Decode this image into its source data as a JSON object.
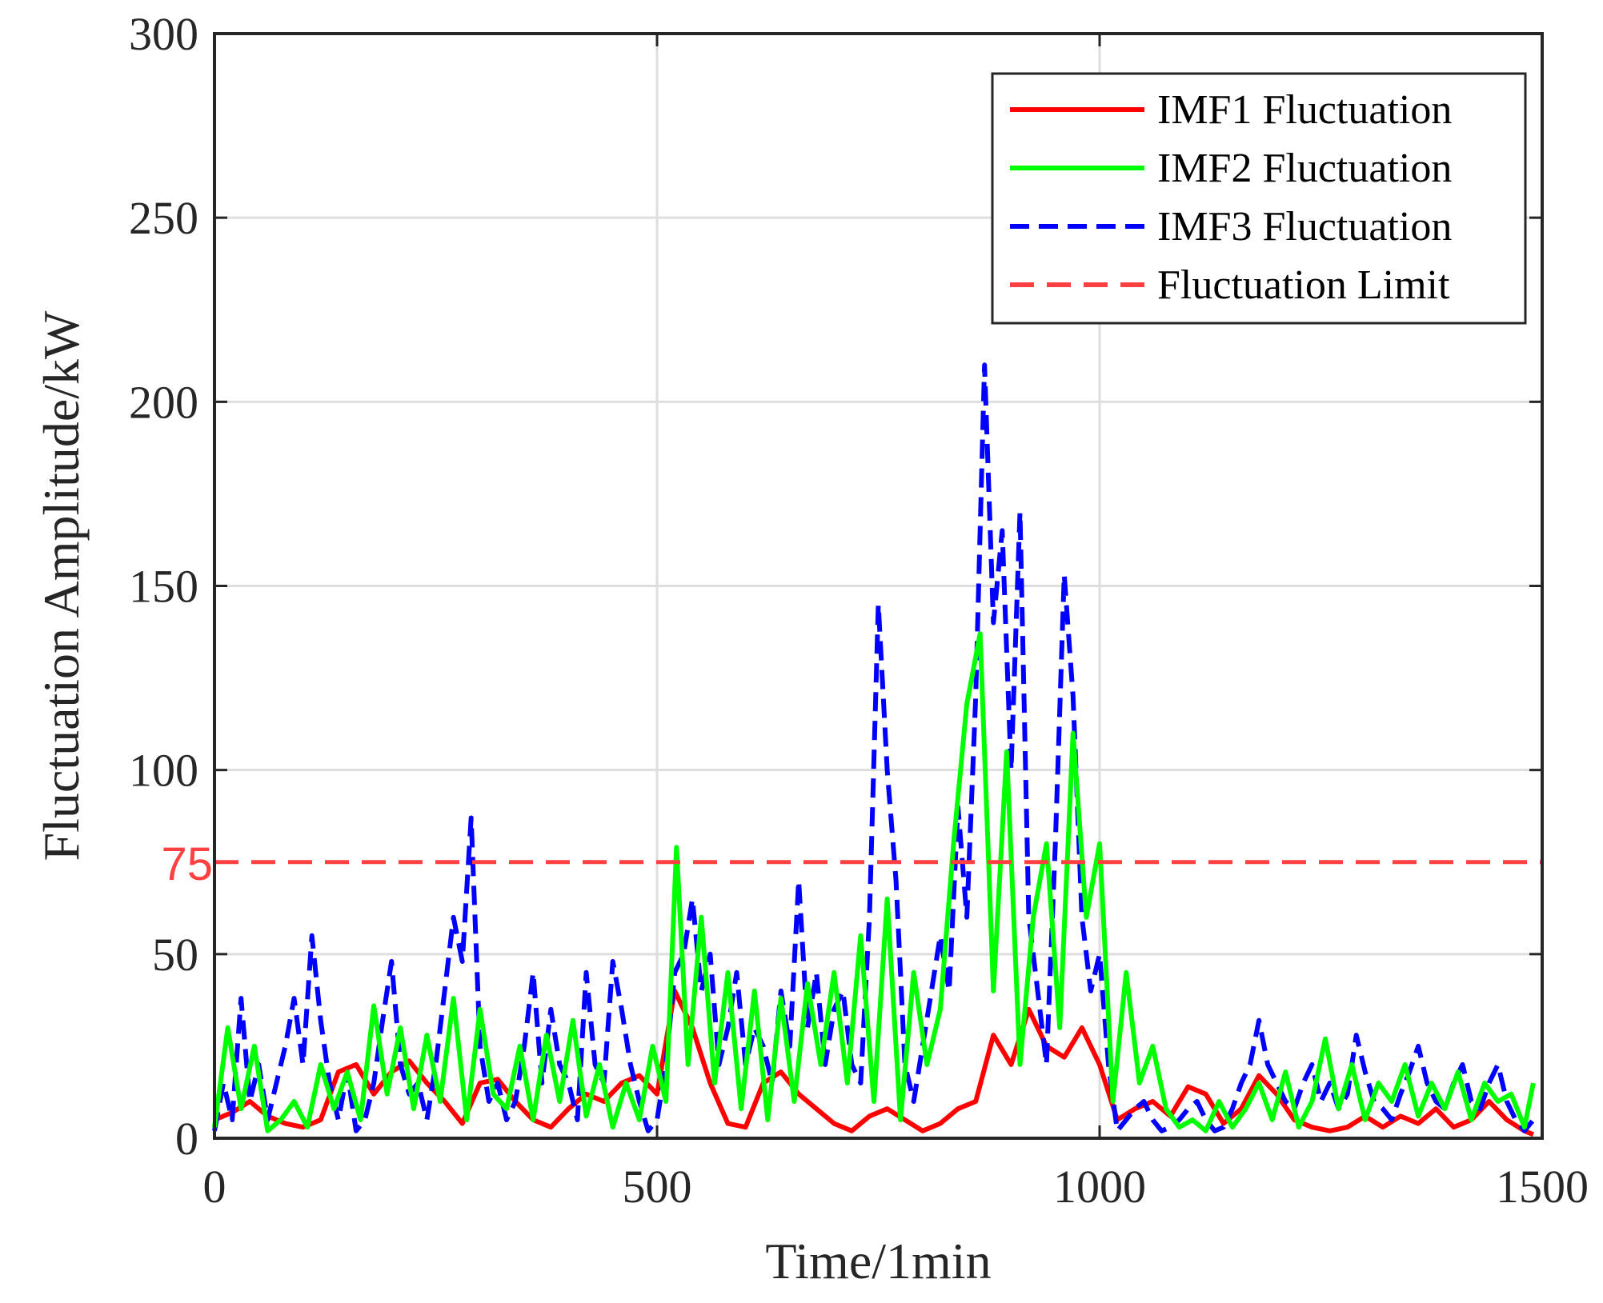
{
  "chart_data": {
    "type": "line",
    "title": "",
    "xlabel": "Time/1min",
    "ylabel": "Fluctuation Amplitude/kW",
    "xlim": [
      0,
      1500
    ],
    "ylim": [
      0,
      300
    ],
    "xticks": [
      0,
      500,
      1000,
      1500
    ],
    "yticks": [
      0,
      50,
      100,
      150,
      200,
      250,
      300
    ],
    "xtick_labels": [
      "0",
      "500",
      "1000",
      "1500"
    ],
    "ytick_labels": [
      "0",
      "50",
      "100",
      "150",
      "200",
      "250",
      "300"
    ],
    "grid": true,
    "legend_position": "top-right",
    "limit": {
      "value": 75,
      "label": "75"
    },
    "series": [
      {
        "name": "IMF1 Fluctuation",
        "color": "#ff0000",
        "style": "solid",
        "x": [
          0,
          20,
          40,
          60,
          80,
          100,
          120,
          140,
          160,
          180,
          200,
          220,
          240,
          260,
          280,
          300,
          320,
          340,
          360,
          380,
          400,
          420,
          440,
          460,
          480,
          500,
          520,
          540,
          560,
          580,
          600,
          620,
          640,
          660,
          680,
          700,
          720,
          740,
          760,
          780,
          800,
          820,
          840,
          860,
          880,
          900,
          920,
          940,
          960,
          980,
          1000,
          1020,
          1040,
          1060,
          1080,
          1100,
          1120,
          1140,
          1160,
          1180,
          1200,
          1220,
          1240,
          1260,
          1280,
          1300,
          1320,
          1340,
          1360,
          1380,
          1400,
          1420,
          1440,
          1460,
          1480,
          1490
        ],
        "values": [
          5,
          7,
          10,
          6,
          4,
          3,
          5,
          18,
          20,
          12,
          18,
          21,
          15,
          10,
          4,
          15,
          16,
          10,
          5,
          3,
          8,
          12,
          10,
          15,
          17,
          12,
          40,
          30,
          15,
          4,
          3,
          15,
          18,
          12,
          8,
          4,
          2,
          6,
          8,
          5,
          2,
          4,
          8,
          10,
          28,
          20,
          35,
          25,
          22,
          30,
          20,
          5,
          8,
          10,
          6,
          14,
          12,
          4,
          8,
          17,
          12,
          5,
          3,
          2,
          3,
          6,
          3,
          6,
          4,
          8,
          3,
          5,
          10,
          5,
          2,
          1
        ]
      },
      {
        "name": "IMF2 Fluctuation",
        "color": "#00ff00",
        "style": "solid",
        "x": [
          0,
          15,
          30,
          45,
          60,
          75,
          90,
          105,
          120,
          135,
          150,
          165,
          180,
          195,
          210,
          225,
          240,
          255,
          270,
          285,
          300,
          315,
          330,
          345,
          360,
          375,
          390,
          405,
          420,
          435,
          450,
          465,
          480,
          495,
          510,
          522,
          535,
          550,
          565,
          580,
          595,
          610,
          625,
          640,
          655,
          670,
          685,
          700,
          715,
          730,
          745,
          760,
          775,
          790,
          805,
          820,
          835,
          850,
          865,
          880,
          895,
          910,
          925,
          940,
          955,
          970,
          985,
          1000,
          1015,
          1030,
          1045,
          1060,
          1075,
          1090,
          1105,
          1120,
          1135,
          1150,
          1165,
          1180,
          1195,
          1210,
          1225,
          1240,
          1255,
          1270,
          1285,
          1300,
          1315,
          1330,
          1345,
          1360,
          1375,
          1390,
          1405,
          1420,
          1435,
          1450,
          1465,
          1480,
          1490
        ],
        "values": [
          3,
          30,
          8,
          25,
          2,
          5,
          10,
          3,
          20,
          8,
          18,
          5,
          36,
          12,
          30,
          8,
          28,
          10,
          38,
          5,
          35,
          12,
          8,
          25,
          5,
          28,
          10,
          32,
          6,
          20,
          3,
          15,
          5,
          25,
          10,
          79,
          20,
          60,
          15,
          45,
          8,
          40,
          5,
          38,
          10,
          42,
          20,
          45,
          15,
          55,
          10,
          65,
          5,
          45,
          20,
          35,
          80,
          118,
          137,
          40,
          105,
          20,
          60,
          80,
          30,
          110,
          60,
          80,
          10,
          45,
          15,
          25,
          8,
          3,
          5,
          2,
          10,
          3,
          8,
          15,
          5,
          18,
          3,
          10,
          27,
          8,
          20,
          5,
          15,
          10,
          20,
          6,
          15,
          8,
          18,
          5,
          15,
          10,
          12,
          3,
          15
        ]
      },
      {
        "name": "IMF3 Fluctuation",
        "color": "#0000ff",
        "style": "dashed",
        "x": [
          0,
          10,
          20,
          30,
          40,
          50,
          60,
          70,
          80,
          90,
          100,
          110,
          120,
          130,
          140,
          150,
          160,
          170,
          180,
          190,
          200,
          210,
          220,
          230,
          240,
          250,
          260,
          270,
          280,
          290,
          300,
          310,
          320,
          330,
          340,
          350,
          360,
          370,
          380,
          390,
          400,
          410,
          420,
          430,
          440,
          450,
          460,
          470,
          480,
          490,
          500,
          510,
          520,
          530,
          540,
          550,
          560,
          570,
          580,
          590,
          600,
          610,
          620,
          630,
          640,
          650,
          660,
          670,
          680,
          690,
          700,
          710,
          720,
          730,
          740,
          750,
          760,
          770,
          780,
          790,
          800,
          810,
          820,
          830,
          840,
          850,
          860,
          870,
          880,
          890,
          900,
          910,
          920,
          930,
          940,
          950,
          960,
          970,
          980,
          990,
          1000,
          1010,
          1020,
          1030,
          1040,
          1050,
          1060,
          1070,
          1080,
          1090,
          1100,
          1110,
          1120,
          1130,
          1140,
          1150,
          1160,
          1170,
          1180,
          1190,
          1200,
          1210,
          1220,
          1230,
          1240,
          1250,
          1260,
          1270,
          1280,
          1290,
          1300,
          1310,
          1320,
          1330,
          1340,
          1350,
          1360,
          1370,
          1380,
          1390,
          1400,
          1410,
          1420,
          1430,
          1440,
          1450,
          1460,
          1470,
          1480,
          1490
        ],
        "values": [
          2,
          15,
          5,
          38,
          10,
          20,
          5,
          15,
          25,
          38,
          20,
          55,
          32,
          15,
          5,
          18,
          2,
          5,
          15,
          32,
          48,
          20,
          12,
          15,
          5,
          20,
          40,
          60,
          48,
          87,
          25,
          10,
          15,
          5,
          10,
          25,
          45,
          15,
          35,
          20,
          15,
          5,
          45,
          20,
          15,
          48,
          35,
          20,
          10,
          2,
          5,
          20,
          45,
          50,
          65,
          40,
          50,
          20,
          30,
          45,
          20,
          30,
          25,
          15,
          40,
          25,
          70,
          30,
          45,
          20,
          35,
          40,
          20,
          15,
          60,
          145,
          100,
          70,
          20,
          10,
          25,
          40,
          55,
          40,
          90,
          60,
          120,
          210,
          140,
          165,
          100,
          170,
          60,
          40,
          20,
          80,
          153,
          120,
          60,
          40,
          50,
          20,
          2,
          5,
          8,
          10,
          5,
          2,
          3,
          5,
          8,
          10,
          5,
          2,
          3,
          8,
          15,
          20,
          32,
          20,
          15,
          10,
          8,
          15,
          20,
          10,
          15,
          8,
          12,
          28,
          18,
          10,
          8,
          5,
          12,
          18,
          25,
          15,
          10,
          8,
          15,
          20,
          10,
          8,
          15,
          20,
          10,
          5,
          2,
          5
        ]
      },
      {
        "name": "Fluctuation Limit",
        "color": "#ff4040",
        "style": "dashed",
        "x": [
          0,
          1500
        ],
        "values": [
          75,
          75
        ]
      }
    ]
  }
}
